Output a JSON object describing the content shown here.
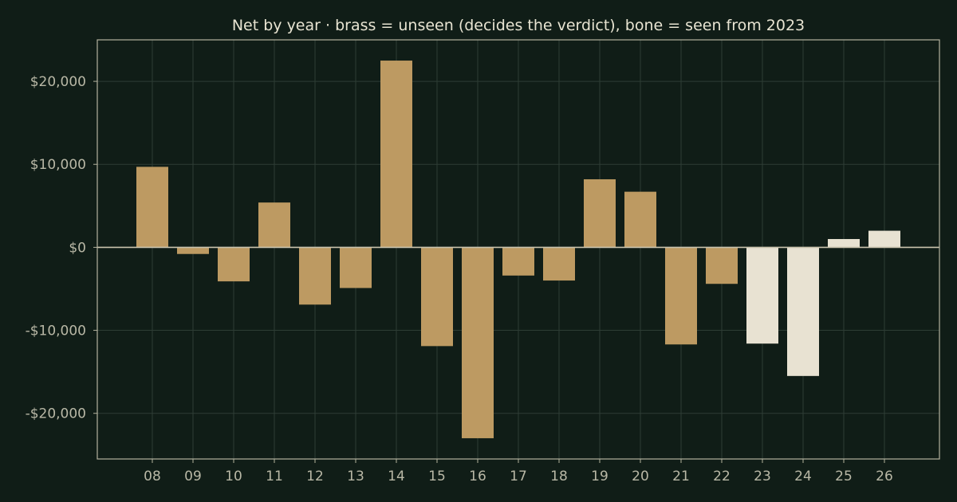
{
  "chart_data": {
    "type": "bar",
    "title": "Net by year  ·  brass = unseen (decides the verdict), bone = seen from 2023",
    "xlabel": "",
    "ylabel": "",
    "categories": [
      "08",
      "09",
      "10",
      "11",
      "12",
      "13",
      "14",
      "15",
      "16",
      "17",
      "18",
      "19",
      "20",
      "21",
      "22",
      "23",
      "24",
      "25",
      "26"
    ],
    "values": [
      9700,
      -800,
      -4100,
      5400,
      -6900,
      -4900,
      22500,
      -11900,
      -23000,
      -3400,
      -4000,
      8200,
      6700,
      -11700,
      -4400,
      -11600,
      -15500,
      1000,
      2000
    ],
    "series_group": [
      "unseen",
      "unseen",
      "unseen",
      "unseen",
      "unseen",
      "unseen",
      "unseen",
      "unseen",
      "unseen",
      "unseen",
      "unseen",
      "unseen",
      "unseen",
      "unseen",
      "unseen",
      "seen",
      "seen",
      "seen",
      "seen"
    ],
    "ylim": [
      -25500,
      25000
    ],
    "yticks": [
      20000,
      10000,
      0,
      -10000,
      -20000
    ],
    "ytick_labels": [
      "$20,000",
      "$10,000",
      "$0",
      "-$10,000",
      "-$20,000"
    ],
    "grid": true,
    "colors": {
      "unseen": "#bd9a62",
      "seen": "#e8e2d2",
      "background": "#101d17",
      "zero_line": "#c9c3ae",
      "axes": "#b4b29e"
    }
  }
}
